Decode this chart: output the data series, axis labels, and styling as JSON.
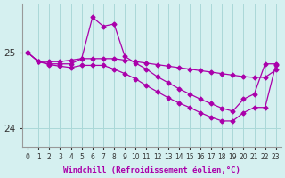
{
  "xlabel": "Windchill (Refroidissement éolien,°C)",
  "hours": [
    0,
    1,
    2,
    3,
    4,
    5,
    6,
    7,
    8,
    9,
    10,
    11,
    12,
    13,
    14,
    15,
    16,
    17,
    18,
    19,
    20,
    21,
    22,
    23
  ],
  "line1": [
    25.0,
    24.88,
    24.88,
    24.88,
    24.9,
    24.92,
    24.92,
    24.92,
    24.92,
    24.9,
    24.88,
    24.86,
    24.84,
    24.82,
    24.8,
    24.78,
    24.76,
    24.74,
    24.72,
    24.7,
    24.68,
    24.67,
    24.67,
    24.77
  ],
  "line2": [
    25.0,
    24.88,
    24.85,
    24.85,
    24.85,
    24.92,
    25.47,
    25.35,
    25.38,
    24.95,
    24.86,
    24.78,
    24.68,
    24.6,
    24.52,
    24.45,
    24.38,
    24.32,
    24.26,
    24.22,
    24.38,
    24.45,
    24.85,
    24.85
  ],
  "line3": [
    25.0,
    24.88,
    24.84,
    24.82,
    24.8,
    24.83,
    24.83,
    24.83,
    24.78,
    24.72,
    24.65,
    24.56,
    24.48,
    24.4,
    24.33,
    24.27,
    24.2,
    24.14,
    24.09,
    24.09,
    24.2,
    24.27,
    24.27,
    24.84
  ],
  "line_color": "#aa00aa",
  "bg_color": "#d5f0f0",
  "grid_color": "#aad8d8",
  "ylim": [
    23.75,
    25.65
  ],
  "yticks": [
    24,
    25
  ],
  "ytick_labels": [
    "24",
    "25"
  ],
  "xticks": [
    0,
    1,
    2,
    3,
    4,
    5,
    6,
    7,
    8,
    9,
    10,
    11,
    12,
    13,
    14,
    15,
    16,
    17,
    18,
    19,
    20,
    21,
    22,
    23
  ],
  "marker": "D",
  "markersize": 2.5,
  "linewidth": 0.9,
  "tick_fontsize": 5.5,
  "xlabel_fontsize": 6.5
}
